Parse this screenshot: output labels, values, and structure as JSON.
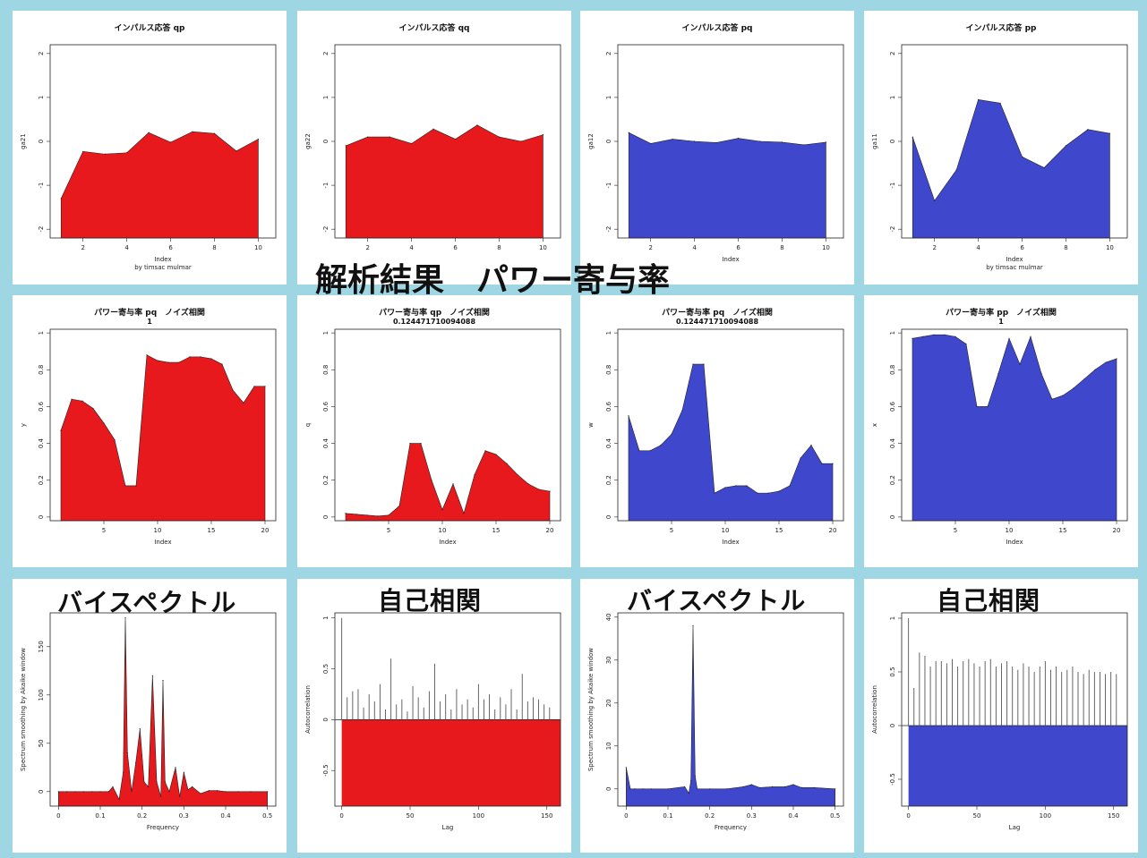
{
  "overlay_title": "解析結果　パワー寄与率",
  "colors": {
    "red": "#e8191c",
    "blue": "#3f48cc",
    "frame": "#9ed6e4"
  },
  "headings": {
    "bispectrum_left": "バイスペクトル",
    "autocorr_left": "自己相関",
    "bispectrum_right": "バイスペクトル",
    "autocorr_right": "自己相関"
  },
  "chart_data": [
    {
      "id": "ir_qp",
      "type": "area",
      "title": "インパルス応答 qp",
      "subtitle": "",
      "xlabel": "Index",
      "sublabel": "by timsac mulmar",
      "ylabel": "ga21",
      "color": "red",
      "xlim": [
        0.5,
        10.8
      ],
      "ylim": [
        -2.2,
        2.2
      ],
      "yticks": [
        -2,
        -1,
        0,
        1,
        2
      ],
      "xticks": [
        2,
        4,
        6,
        8,
        10
      ],
      "baseline": -2.2,
      "x": [
        1,
        2,
        3,
        4,
        5,
        6,
        7,
        8,
        9,
        10
      ],
      "values": [
        -1.3,
        -0.23,
        -0.29,
        -0.26,
        0.2,
        -0.02,
        0.22,
        0.18,
        -0.22,
        0.05
      ]
    },
    {
      "id": "ir_qq",
      "type": "area",
      "title": "インパルス応答 qq",
      "subtitle": "",
      "xlabel": "",
      "sublabel": "",
      "ylabel": "ga22",
      "color": "red",
      "xlim": [
        0.5,
        10.8
      ],
      "ylim": [
        -2.2,
        2.2
      ],
      "yticks": [
        -2,
        -1,
        0,
        1,
        2
      ],
      "xticks": [
        2,
        4,
        6,
        8,
        10
      ],
      "baseline": -2.2,
      "x": [
        1,
        2,
        3,
        4,
        5,
        6,
        7,
        8,
        9,
        10
      ],
      "values": [
        -0.1,
        0.1,
        0.1,
        -0.05,
        0.28,
        0.05,
        0.37,
        0.1,
        0.0,
        0.15
      ]
    },
    {
      "id": "ir_pq",
      "type": "area",
      "title": "インパルス応答 pq",
      "subtitle": "",
      "xlabel": "Index",
      "sublabel": "",
      "ylabel": "ga12",
      "color": "blue",
      "xlim": [
        0.5,
        10.8
      ],
      "ylim": [
        -2.2,
        2.2
      ],
      "yticks": [
        -2,
        -1,
        0,
        1,
        2
      ],
      "xticks": [
        2,
        4,
        6,
        8,
        10
      ],
      "baseline": -2.2,
      "x": [
        1,
        2,
        3,
        4,
        5,
        6,
        7,
        8,
        9,
        10
      ],
      "values": [
        0.2,
        -0.05,
        0.05,
        0.0,
        -0.03,
        0.07,
        0.0,
        -0.02,
        -0.08,
        -0.02
      ]
    },
    {
      "id": "ir_pp",
      "type": "area",
      "title": "インパルス応答 pp",
      "subtitle": "",
      "xlabel": "Index",
      "sublabel": "by timsac mulmar",
      "ylabel": "ga11",
      "color": "blue",
      "xlim": [
        0.5,
        10.8
      ],
      "ylim": [
        -2.2,
        2.2
      ],
      "yticks": [
        -2,
        -1,
        0,
        1,
        2
      ],
      "xticks": [
        2,
        4,
        6,
        8,
        10
      ],
      "baseline": -2.2,
      "x": [
        1,
        2,
        3,
        4,
        5,
        6,
        7,
        8,
        9,
        10
      ],
      "values": [
        0.1,
        -1.35,
        -0.65,
        0.95,
        0.87,
        -0.35,
        -0.6,
        -0.1,
        0.27,
        0.18
      ]
    },
    {
      "id": "pc_pq",
      "type": "area",
      "title": "パワー寄与率 pq　ノイズ相関",
      "subtitle": "1",
      "xlabel": "Index",
      "sublabel": "",
      "ylabel": "y",
      "color": "red",
      "xlim": [
        0,
        21
      ],
      "ylim": [
        -0.02,
        1.02
      ],
      "yticks": [
        0.0,
        0.2,
        0.4,
        0.6,
        0.8,
        1.0
      ],
      "xticks": [
        5,
        10,
        15,
        20
      ],
      "baseline": -0.02,
      "x": [
        1,
        2,
        3,
        4,
        5,
        6,
        7,
        8,
        9,
        10,
        11,
        12,
        13,
        14,
        15,
        16,
        17,
        18,
        19,
        20
      ],
      "values": [
        0.47,
        0.64,
        0.63,
        0.59,
        0.51,
        0.42,
        0.17,
        0.17,
        0.88,
        0.85,
        0.84,
        0.84,
        0.87,
        0.87,
        0.86,
        0.83,
        0.69,
        0.62,
        0.71,
        0.71
      ]
    },
    {
      "id": "pc_qp",
      "type": "area",
      "title": "パワー寄与率 qp　ノイズ相関",
      "subtitle": "0.124471710094088",
      "xlabel": "Index",
      "sublabel": "",
      "ylabel": "q",
      "color": "red",
      "xlim": [
        0,
        21
      ],
      "ylim": [
        -0.02,
        1.02
      ],
      "yticks": [
        0.0,
        0.2,
        0.4,
        0.6,
        0.8,
        1.0
      ],
      "xticks": [
        5,
        10,
        15,
        20
      ],
      "baseline": -0.02,
      "x": [
        1,
        2,
        3,
        4,
        5,
        6,
        7,
        8,
        9,
        10,
        11,
        12,
        13,
        14,
        15,
        16,
        17,
        18,
        19,
        20
      ],
      "values": [
        0.02,
        0.015,
        0.01,
        0.005,
        0.01,
        0.06,
        0.4,
        0.4,
        0.2,
        0.04,
        0.18,
        0.02,
        0.23,
        0.36,
        0.34,
        0.29,
        0.23,
        0.18,
        0.15,
        0.14
      ]
    },
    {
      "id": "pc_pq2",
      "type": "area",
      "title": "パワー寄与率 pq　ノイズ相関",
      "subtitle": "0.124471710094088",
      "xlabel": "Index",
      "sublabel": "",
      "ylabel": "w",
      "color": "blue",
      "xlim": [
        0,
        21
      ],
      "ylim": [
        -0.02,
        1.02
      ],
      "yticks": [
        0.0,
        0.2,
        0.4,
        0.6,
        0.8,
        1.0
      ],
      "xticks": [
        5,
        10,
        15,
        20
      ],
      "baseline": -0.02,
      "x": [
        1,
        2,
        3,
        4,
        5,
        6,
        7,
        8,
        9,
        10,
        11,
        12,
        13,
        14,
        15,
        16,
        17,
        18,
        19,
        20
      ],
      "values": [
        0.55,
        0.36,
        0.36,
        0.39,
        0.45,
        0.58,
        0.83,
        0.83,
        0.13,
        0.16,
        0.17,
        0.17,
        0.13,
        0.13,
        0.14,
        0.17,
        0.32,
        0.39,
        0.29,
        0.29
      ]
    },
    {
      "id": "pc_pp",
      "type": "area",
      "title": "パワー寄与率 pp　ノイズ相関",
      "subtitle": "1",
      "xlabel": "Index",
      "sublabel": "",
      "ylabel": "x",
      "color": "blue",
      "xlim": [
        0,
        21
      ],
      "ylim": [
        -0.02,
        1.02
      ],
      "yticks": [
        0.0,
        0.2,
        0.4,
        0.6,
        0.8,
        1.0
      ],
      "xticks": [
        5,
        10,
        15,
        20
      ],
      "baseline": -0.02,
      "x": [
        1,
        2,
        3,
        4,
        5,
        6,
        7,
        8,
        9,
        10,
        11,
        12,
        13,
        14,
        15,
        16,
        17,
        18,
        19,
        20
      ],
      "values": [
        0.97,
        0.98,
        0.99,
        0.99,
        0.98,
        0.94,
        0.6,
        0.6,
        0.78,
        0.97,
        0.83,
        0.98,
        0.78,
        0.64,
        0.66,
        0.7,
        0.75,
        0.8,
        0.84,
        0.86
      ]
    },
    {
      "id": "bs_left",
      "type": "area",
      "title": "",
      "subtitle": "",
      "xlabel": "Frequency",
      "sublabel": "",
      "ylabel": "Spectrum smoothing by Akaike window",
      "color": "red",
      "xlim": [
        -0.02,
        0.52
      ],
      "ylim": [
        -15,
        185
      ],
      "yticks": [
        0,
        50,
        100,
        150
      ],
      "xticks": [
        0.0,
        0.1,
        0.2,
        0.3,
        0.4,
        0.5
      ],
      "baseline": -15,
      "x": [
        0,
        0.02,
        0.04,
        0.06,
        0.08,
        0.1,
        0.12,
        0.13,
        0.145,
        0.155,
        0.16,
        0.165,
        0.175,
        0.185,
        0.195,
        0.205,
        0.215,
        0.225,
        0.235,
        0.245,
        0.25,
        0.255,
        0.265,
        0.28,
        0.29,
        0.3,
        0.31,
        0.32,
        0.34,
        0.36,
        0.38,
        0.4,
        0.43,
        0.46,
        0.5
      ],
      "values": [
        0,
        0,
        0,
        0,
        0,
        0,
        0,
        5,
        -8,
        20,
        180,
        40,
        0,
        30,
        65,
        10,
        5,
        120,
        10,
        -5,
        115,
        10,
        0,
        25,
        -5,
        20,
        2,
        5,
        -2,
        1,
        1,
        0,
        0,
        0,
        0
      ]
    },
    {
      "id": "ac_left",
      "type": "bar",
      "title": "",
      "subtitle": "",
      "xlabel": "Lag",
      "sublabel": "",
      "ylabel": "Autocorrelation",
      "color": "red",
      "xlim": [
        -5,
        160
      ],
      "ylim": [
        -0.85,
        1.05
      ],
      "yticks": [
        -0.5,
        0.0,
        0.5,
        1.0
      ],
      "xticks": [
        0,
        50,
        100,
        150
      ],
      "baseline": -0.85,
      "x": [
        0,
        4,
        8,
        12,
        16,
        20,
        24,
        28,
        32,
        36,
        40,
        44,
        48,
        52,
        56,
        60,
        64,
        68,
        72,
        76,
        80,
        84,
        88,
        92,
        96,
        100,
        104,
        108,
        112,
        116,
        120,
        124,
        128,
        132,
        136,
        140,
        144,
        148,
        152
      ],
      "values": [
        1.0,
        0.22,
        0.28,
        0.3,
        0.12,
        0.25,
        0.18,
        0.35,
        0.1,
        0.6,
        0.15,
        0.2,
        0.08,
        0.33,
        0.22,
        0.12,
        0.28,
        0.55,
        0.18,
        0.25,
        0.1,
        0.3,
        0.15,
        0.2,
        0.12,
        0.35,
        0.2,
        0.25,
        0.1,
        0.22,
        0.15,
        0.3,
        0.1,
        0.45,
        0.18,
        0.22,
        0.2,
        0.15,
        0.12
      ]
    },
    {
      "id": "bs_right",
      "type": "area",
      "title": "",
      "subtitle": "",
      "xlabel": "Frequency",
      "sublabel": "",
      "ylabel": "Spectrum smoothing by Akaike window",
      "color": "blue",
      "xlim": [
        -0.02,
        0.52
      ],
      "ylim": [
        -4,
        41
      ],
      "yticks": [
        0,
        10,
        20,
        30,
        40
      ],
      "xticks": [
        0.0,
        0.1,
        0.2,
        0.3,
        0.4,
        0.5
      ],
      "baseline": -4,
      "x": [
        0,
        0.01,
        0.02,
        0.04,
        0.06,
        0.1,
        0.14,
        0.15,
        0.155,
        0.16,
        0.165,
        0.17,
        0.2,
        0.24,
        0.28,
        0.3,
        0.32,
        0.35,
        0.38,
        0.4,
        0.42,
        0.45,
        0.5
      ],
      "values": [
        5,
        0,
        0,
        0,
        0,
        0,
        0.5,
        -1,
        2,
        38,
        3,
        0,
        0,
        0,
        0.5,
        1,
        0.3,
        0.5,
        0.5,
        1,
        0.3,
        0.3,
        0
      ]
    },
    {
      "id": "ac_right",
      "type": "bar",
      "title": "",
      "subtitle": "",
      "xlabel": "Lag",
      "sublabel": "",
      "ylabel": "Autocorrelation",
      "color": "blue",
      "xlim": [
        -5,
        160
      ],
      "ylim": [
        -0.75,
        1.05
      ],
      "yticks": [
        -0.5,
        0.0,
        0.5,
        1.0
      ],
      "xticks": [
        0,
        50,
        100,
        150
      ],
      "baseline": -0.75,
      "x": [
        0,
        4,
        8,
        12,
        16,
        20,
        24,
        28,
        32,
        36,
        40,
        44,
        48,
        52,
        56,
        60,
        64,
        68,
        72,
        76,
        80,
        84,
        88,
        92,
        96,
        100,
        104,
        108,
        112,
        116,
        120,
        124,
        128,
        132,
        136,
        140,
        144,
        148,
        152
      ],
      "values": [
        1.0,
        0.35,
        0.68,
        0.65,
        0.55,
        0.6,
        0.6,
        0.58,
        0.62,
        0.55,
        0.6,
        0.62,
        0.58,
        0.55,
        0.6,
        0.62,
        0.55,
        0.58,
        0.6,
        0.55,
        0.52,
        0.58,
        0.55,
        0.5,
        0.55,
        0.6,
        0.52,
        0.55,
        0.5,
        0.52,
        0.55,
        0.5,
        0.48,
        0.52,
        0.5,
        0.5,
        0.48,
        0.5,
        0.48
      ]
    }
  ]
}
